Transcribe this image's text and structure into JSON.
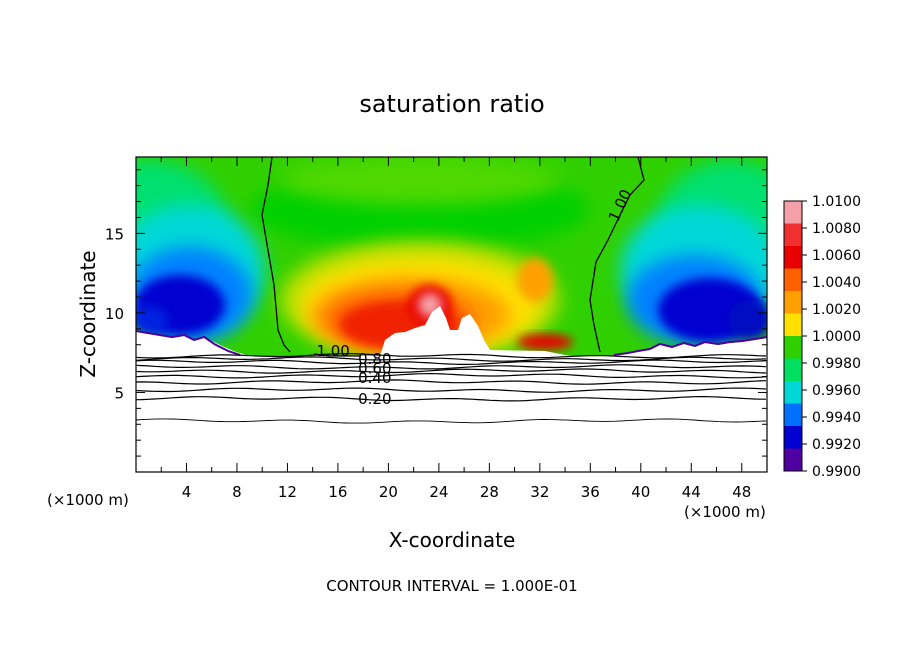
{
  "chart_data": {
    "type": "heatmap",
    "title": "saturation ratio",
    "xlabel": "X-coordinate",
    "ylabel": "Z-coordinate",
    "x_unit": "(×1000 m)",
    "z_unit": "(×1000 m)",
    "xlim": [
      0,
      50
    ],
    "ylim": [
      0,
      19.8
    ],
    "x_ticks": [
      "4",
      "8",
      "12",
      "16",
      "20",
      "24",
      "28",
      "32",
      "36",
      "40",
      "44",
      "48"
    ],
    "y_ticks": [
      "5",
      "10",
      "15"
    ],
    "footer": "CONTOUR INTERVAL = 1.000E-01",
    "colorbar": {
      "levels": [
        "1.0100",
        "1.0080",
        "1.0060",
        "1.0040",
        "1.0020",
        "1.0000",
        "0.9980",
        "0.9960",
        "0.9940",
        "0.9920",
        "0.9900"
      ],
      "colors": [
        "#f5a0a8",
        "#f03030",
        "#e80000",
        "#ff6000",
        "#ffa000",
        "#ffe000",
        "#30d000",
        "#00e060",
        "#00d8d8",
        "#0070ff",
        "#0000d0",
        "#5000a0"
      ]
    },
    "contour_labels": [
      {
        "text": "1.00",
        "x": 14.3,
        "z": 7.6
      },
      {
        "text": "1.00",
        "x": 37.8,
        "z": 15.8
      },
      {
        "text": "0.80",
        "x": 17.6,
        "z": 7.1
      },
      {
        "text": "0.60",
        "x": 17.6,
        "z": 6.5
      },
      {
        "text": "0.40",
        "x": 17.6,
        "z": 5.9
      },
      {
        "text": "0.20",
        "x": 17.6,
        "z": 4.6
      }
    ],
    "contour_levels_below": [
      {
        "level": 1.0,
        "z": 7.3
      },
      {
        "level": 0.9,
        "z": 7.1
      },
      {
        "level": 0.8,
        "z": 6.9
      },
      {
        "level": 0.7,
        "z": 6.6
      },
      {
        "level": 0.6,
        "z": 6.35
      },
      {
        "level": 0.5,
        "z": 6.05
      },
      {
        "level": 0.4,
        "z": 5.65
      },
      {
        "level": 0.3,
        "z": 5.15
      },
      {
        "level": 0.2,
        "z": 4.6
      },
      {
        "level": 0.1,
        "z": 3.2
      }
    ]
  }
}
